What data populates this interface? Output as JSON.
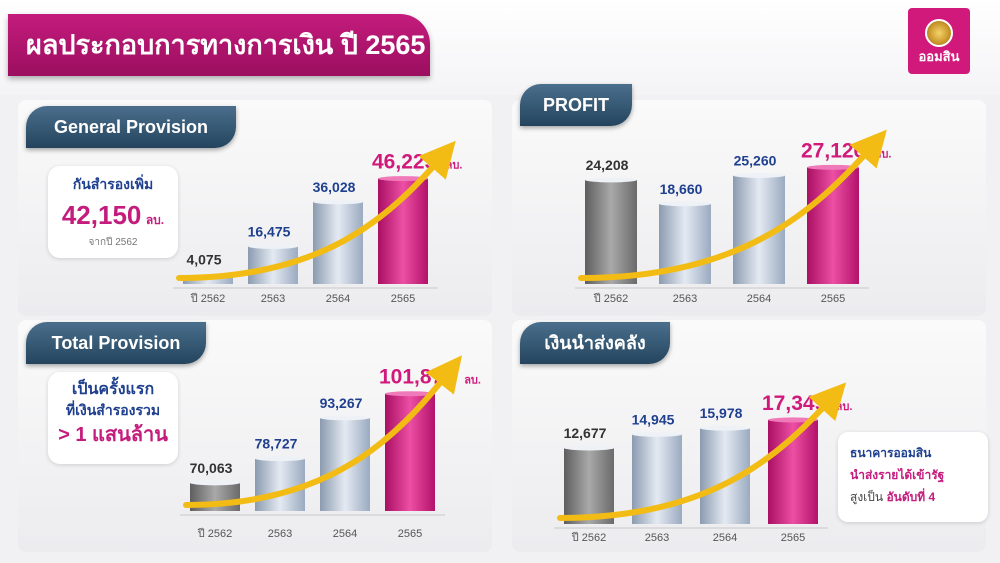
{
  "header": {
    "title": "ผลประกอบการทางการเงิน ปี 2565",
    "logo_text": "ออมสิน"
  },
  "colors": {
    "magenta": "#d0197a",
    "navy": "#1f3f8f",
    "gray_bar": "#7d7d7d",
    "silver_bar": "#b5c3d6",
    "arrow": "#f3bc14"
  },
  "panels": {
    "general": {
      "title": "General Provision",
      "callout": {
        "line1": "กันสำรองเพิ่ม",
        "value": "42,150",
        "unit": "ลบ.",
        "line3": "จากปี 2562"
      }
    },
    "profit": {
      "title": "PROFIT"
    },
    "total": {
      "title": "Total Provision",
      "callout": {
        "line1": "เป็นครั้งแรก",
        "line2": "ที่เงินสำรองรวม",
        "line3": "> 1 แสนล้าน"
      }
    },
    "remit": {
      "title": "เงินนำส่งคลัง",
      "note": {
        "line1": "ธนาคารออมสิน",
        "line2": "นำส่งรายได้เข้ารัฐ",
        "line3_prefix": "สูงเป็น",
        "line3_highlight": "อันดับที่ 4"
      }
    }
  },
  "chart_data": [
    {
      "type": "bar",
      "title": "General Provision",
      "categories": [
        "ปี 2562",
        "2563",
        "2564",
        "2565"
      ],
      "values": [
        4075,
        16475,
        36028,
        46225
      ],
      "value_labels": [
        "4,075",
        "16,475",
        "36,028",
        "46,225"
      ],
      "unit": "ลบ.",
      "ylim": [
        0,
        50000
      ]
    },
    {
      "type": "bar",
      "title": "PROFIT",
      "categories": [
        "ปี 2562",
        "2563",
        "2564",
        "2565"
      ],
      "values": [
        24208,
        18660,
        25260,
        27126
      ],
      "value_labels": [
        "24,208",
        "18,660",
        "25,260",
        "27,126"
      ],
      "unit": "ลบ.",
      "ylim": [
        0,
        30000
      ]
    },
    {
      "type": "bar",
      "title": "Total Provision",
      "categories": [
        "ปี 2562",
        "2563",
        "2564",
        "2565"
      ],
      "values": [
        70063,
        78727,
        93267,
        101878
      ],
      "value_labels": [
        "70,063",
        "78,727",
        "93,267",
        "101,878"
      ],
      "unit": "ลบ.",
      "ylim": [
        60000,
        105000
      ]
    },
    {
      "type": "bar",
      "title": "เงินนำส่งคลัง",
      "categories": [
        "ปี 2562",
        "2563",
        "2564",
        "2565"
      ],
      "values": [
        12677,
        14945,
        15978,
        17349
      ],
      "value_labels": [
        "12,677",
        "14,945",
        "15,978",
        "17,349"
      ],
      "unit": "ลบ.",
      "ylim": [
        0,
        19000
      ]
    }
  ]
}
